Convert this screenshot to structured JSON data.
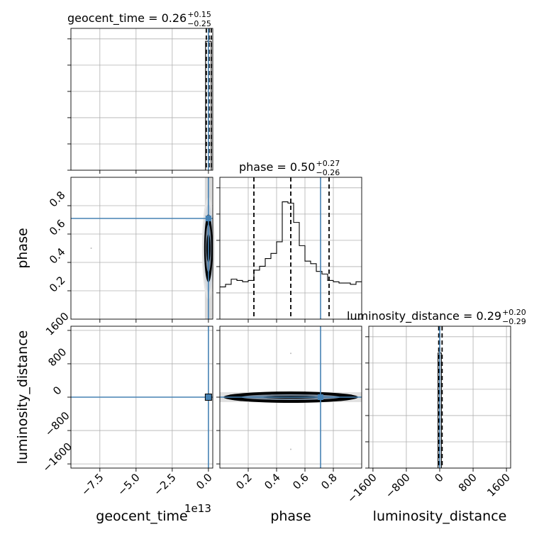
{
  "chart_data": {
    "type": "corner",
    "parameters": [
      "geocent_time",
      "phase",
      "luminosity_distance"
    ],
    "axis_labels": {
      "geocent_time": "geocent_time",
      "phase": "phase",
      "luminosity_distance": "luminosity_distance"
    },
    "titles": [
      {
        "param": "geocent_time",
        "main": "geocent_time = 0.26",
        "plus": "+0.15",
        "minus": "−0.25"
      },
      {
        "param": "phase",
        "main": "phase = 0.50",
        "plus": "+0.27",
        "minus": "−0.26"
      },
      {
        "param": "luminosity_distance",
        "main": "luminosity_distance = 0.29",
        "plus": "+0.20",
        "minus": "−0.29"
      }
    ],
    "geocent_time_offset_label": "1e13",
    "ticks": {
      "geocent_time": [
        "−7.5",
        "−5.0",
        "−2.5",
        "0.0"
      ],
      "phase_x": [
        "0.2",
        "0.4",
        "0.6",
        "0.8"
      ],
      "phase_y": [
        "0.2",
        "0.4",
        "0.6",
        "0.8"
      ],
      "luminosity_distance": [
        "−1600",
        "−800",
        "0",
        "800",
        "1600"
      ]
    },
    "ranges": {
      "geocent_time": [
        -9.5,
        0.3
      ],
      "phase": [
        0.0,
        1.0
      ],
      "luminosity_distance": [
        -1700,
        1700
      ]
    },
    "truths": {
      "geocent_time": 0.0,
      "phase": 0.71,
      "luminosity_distance": 0.0
    },
    "quantiles": {
      "phase": [
        0.24,
        0.5,
        0.77
      ],
      "geocent_time": [
        0.0,
        0.26,
        0.41
      ],
      "luminosity_distance": [
        0.0,
        0.29,
        0.49
      ]
    },
    "phase_histogram": {
      "bin_edges": [
        0.0,
        0.04,
        0.08,
        0.12,
        0.16,
        0.2,
        0.24,
        0.28,
        0.32,
        0.36,
        0.4,
        0.44,
        0.48,
        0.52,
        0.56,
        0.6,
        0.64,
        0.68,
        0.72,
        0.76,
        0.8,
        0.84,
        0.88,
        0.92,
        0.96,
        1.0
      ],
      "counts": [
        0.25,
        0.27,
        0.31,
        0.3,
        0.29,
        0.3,
        0.38,
        0.41,
        0.47,
        0.51,
        0.6,
        0.91,
        0.9,
        0.75,
        0.57,
        0.45,
        0.43,
        0.37,
        0.35,
        0.3,
        0.29,
        0.28,
        0.28,
        0.27,
        0.29
      ],
      "ymax": 1.0
    },
    "geocent_time_histogram": {
      "bin_edges": [
        -0.1,
        0.0,
        0.1
      ],
      "counts": [
        1.0,
        1.0
      ],
      "ymax": 1.0
    },
    "luminosity_distance_histogram": {
      "bin_edges": [
        -40,
        0,
        40
      ],
      "counts": [
        1.0,
        1.0
      ],
      "ymax": 1.12
    },
    "grid": true
  }
}
